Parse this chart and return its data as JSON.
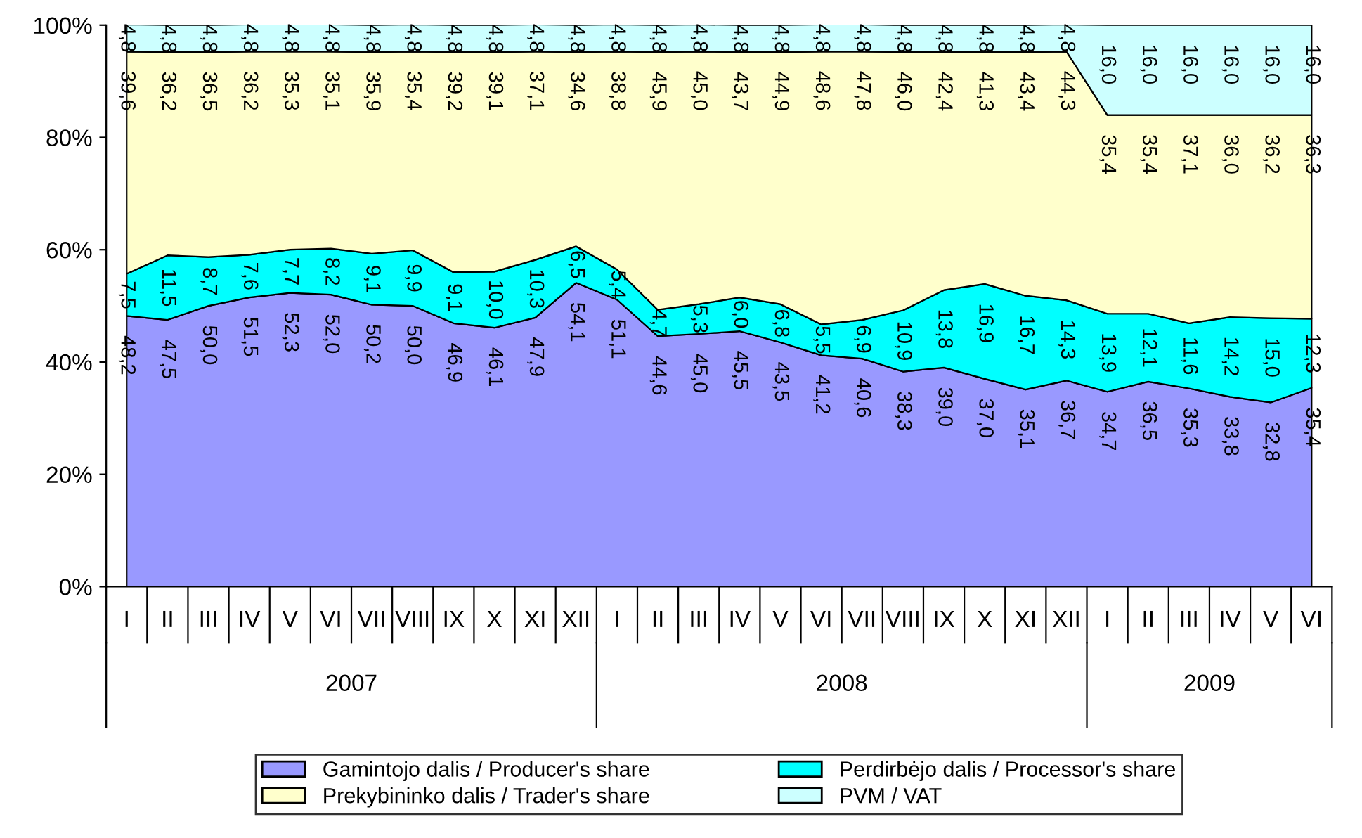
{
  "chart_data": {
    "type": "area",
    "stacked": true,
    "categories": [
      "I",
      "II",
      "III",
      "IV",
      "V",
      "VI",
      "VII",
      "VIII",
      "IX",
      "X",
      "XI",
      "XII",
      "I",
      "II",
      "III",
      "IV",
      "V",
      "VI",
      "VII",
      "VIII",
      "IX",
      "X",
      "XI",
      "XII",
      "I",
      "II",
      "III",
      "IV",
      "V",
      "VI"
    ],
    "series": [
      {
        "name": "Gamintojo dalis / Producer's share",
        "color": "#9999ff",
        "values": [
          48.2,
          47.5,
          50.0,
          51.5,
          52.3,
          52.0,
          50.2,
          50.0,
          46.9,
          46.1,
          47.9,
          54.1,
          51.1,
          44.6,
          45.0,
          45.5,
          43.5,
          41.2,
          40.6,
          38.3,
          39.0,
          37.0,
          35.1,
          36.7,
          34.7,
          36.5,
          35.3,
          33.8,
          32.8,
          35.4
        ],
        "value_labels": [
          "48,2",
          "47,5",
          "50,0",
          "51,5",
          "52,3",
          "52,0",
          "50,2",
          "50,0",
          "46,9",
          "46,1",
          "47,9",
          "54,1",
          "51,1",
          "44,6",
          "45,0",
          "45,5",
          "43,5",
          "41,2",
          "40,6",
          "38,3",
          "39,0",
          "37,0",
          "35,1",
          "36,7",
          "34,7",
          "36,5",
          "35,3",
          "33,8",
          "32,8",
          "35,4"
        ]
      },
      {
        "name": "Perdirbėjo dalis / Processor's share",
        "color": "#00ffff",
        "values": [
          7.5,
          11.5,
          8.7,
          7.6,
          7.7,
          8.2,
          9.1,
          9.9,
          9.1,
          10.0,
          10.3,
          6.5,
          5.4,
          4.7,
          5.3,
          6.0,
          6.8,
          5.5,
          6.9,
          10.9,
          13.8,
          16.9,
          16.7,
          14.3,
          13.9,
          12.1,
          11.6,
          14.2,
          15.0,
          12.3
        ],
        "value_labels": [
          "7,5",
          "11,5",
          "8,7",
          "7,6",
          "7,7",
          "8,2",
          "9,1",
          "9,9",
          "9,1",
          "10,0",
          "10,3",
          "6,5",
          "5,4",
          "4,7",
          "5,3",
          "6,0",
          "6,8",
          "5,5",
          "6,9",
          "10,9",
          "13,8",
          "16,9",
          "16,7",
          "14,3",
          "13,9",
          "12,1",
          "11,6",
          "14,2",
          "15,0",
          "12,3"
        ]
      },
      {
        "name": "Prekybininko dalis / Trader's share",
        "color": "#ffffcc",
        "values": [
          39.6,
          36.2,
          36.5,
          36.2,
          35.3,
          35.1,
          35.9,
          35.4,
          39.2,
          39.1,
          37.1,
          34.6,
          38.8,
          45.9,
          45.0,
          43.7,
          44.9,
          48.6,
          47.8,
          46.0,
          42.4,
          41.3,
          43.4,
          44.3,
          35.4,
          35.4,
          37.1,
          36.0,
          36.2,
          36.3
        ],
        "value_labels": [
          "39,6",
          "36,2",
          "36,5",
          "36,2",
          "35,3",
          "35,1",
          "35,9",
          "35,4",
          "39,2",
          "39,1",
          "37,1",
          "34,6",
          "38,8",
          "45,9",
          "45,0",
          "43,7",
          "44,9",
          "48,6",
          "47,8",
          "46,0",
          "42,4",
          "41,3",
          "43,4",
          "44,3",
          "35,4",
          "35,4",
          "37,1",
          "36,0",
          "36,2",
          "36,3"
        ]
      },
      {
        "name": "PVM / VAT",
        "color": "#ccffff",
        "values": [
          4.8,
          4.8,
          4.8,
          4.8,
          4.8,
          4.8,
          4.8,
          4.8,
          4.8,
          4.8,
          4.8,
          4.8,
          4.8,
          4.8,
          4.8,
          4.8,
          4.8,
          4.8,
          4.8,
          4.8,
          4.8,
          4.8,
          4.8,
          4.8,
          16.0,
          16.0,
          16.0,
          16.0,
          16.0,
          16.0
        ],
        "value_labels": [
          "4,8",
          "4,8",
          "4,8",
          "4,8",
          "4,8",
          "4,8",
          "4,8",
          "4,8",
          "4,8",
          "4,8",
          "4,8",
          "4,8",
          "4,8",
          "4,8",
          "4,8",
          "4,8",
          "4,8",
          "4,8",
          "4,8",
          "4,8",
          "4,8",
          "4,8",
          "4,8",
          "4,8",
          "16,0",
          "16,0",
          "16,0",
          "16,0",
          "16,0",
          "16,0"
        ]
      }
    ],
    "ylim": [
      0,
      100
    ],
    "yticks": [
      {
        "value": 0,
        "label": "0%"
      },
      {
        "value": 20,
        "label": "20%"
      },
      {
        "value": 40,
        "label": "40%"
      },
      {
        "value": 60,
        "label": "60%"
      },
      {
        "value": 80,
        "label": "80%"
      },
      {
        "value": 100,
        "label": "100%"
      }
    ],
    "annotations": [
      "2007",
      "2008",
      "2009"
    ],
    "grid": false,
    "legend": "bottom"
  }
}
